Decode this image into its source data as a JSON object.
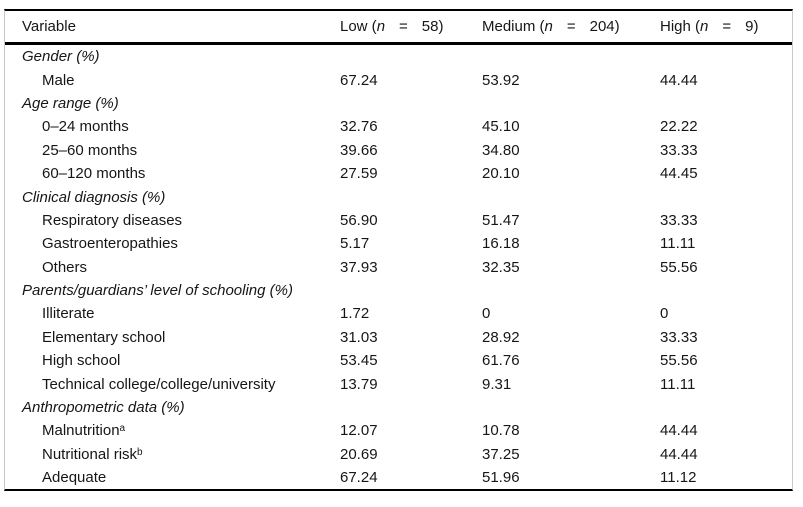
{
  "table": {
    "header": {
      "variable": "Variable",
      "columns": [
        {
          "pre": "Low (",
          "n": "n",
          "eq": "=",
          "post": "58)"
        },
        {
          "pre": "Medium (",
          "n": "n",
          "eq": "=",
          "post": "204)"
        },
        {
          "pre": "High (",
          "n": "n",
          "eq": "=",
          "post": "9)"
        }
      ]
    },
    "rows": [
      {
        "type": "section",
        "label": "Gender (%)"
      },
      {
        "type": "item",
        "label": "Male",
        "low": "67.24",
        "medium": "53.92",
        "high": "44.44"
      },
      {
        "type": "section",
        "label": "Age range (%)"
      },
      {
        "type": "item",
        "label": "0–24 months",
        "low": "32.76",
        "medium": "45.10",
        "high": "22.22"
      },
      {
        "type": "item",
        "label": "25–60 months",
        "low": "39.66",
        "medium": "34.80",
        "high": "33.33"
      },
      {
        "type": "item",
        "label": "60–120 months",
        "low": "27.59",
        "medium": "20.10",
        "high": "44.45"
      },
      {
        "type": "section",
        "label": "Clinical diagnosis (%)"
      },
      {
        "type": "item",
        "label": "Respiratory diseases",
        "low": "56.90",
        "medium": "51.47",
        "high": "33.33"
      },
      {
        "type": "item",
        "label": "Gastroenteropathies",
        "low": "5.17",
        "medium": "16.18",
        "high": "11.11"
      },
      {
        "type": "item",
        "label": "Others",
        "low": "37.93",
        "medium": "32.35",
        "high": "55.56"
      },
      {
        "type": "section",
        "label": "Parents/guardians’ level of schooling (%)"
      },
      {
        "type": "item",
        "label": "Illiterate",
        "low": "1.72",
        "medium": "0",
        "high": "0"
      },
      {
        "type": "item",
        "label": "Elementary school",
        "low": "31.03",
        "medium": "28.92",
        "high": "33.33"
      },
      {
        "type": "item",
        "label": "High school",
        "low": "53.45",
        "medium": "61.76",
        "high": "55.56"
      },
      {
        "type": "item",
        "label": "Technical college/college/university",
        "low": "13.79",
        "medium": "9.31",
        "high": "11.11"
      },
      {
        "type": "section",
        "label": "Anthropometric data (%)"
      },
      {
        "type": "item",
        "label": "Malnutrition",
        "sup": "a",
        "low": "12.07",
        "medium": "10.78",
        "high": "44.44"
      },
      {
        "type": "item",
        "label": "Nutritional risk",
        "sup": "b",
        "low": "20.69",
        "medium": "37.25",
        "high": "44.44"
      },
      {
        "type": "item",
        "label": "Adequate",
        "low": "67.24",
        "medium": "51.96",
        "high": "11.12"
      }
    ]
  }
}
